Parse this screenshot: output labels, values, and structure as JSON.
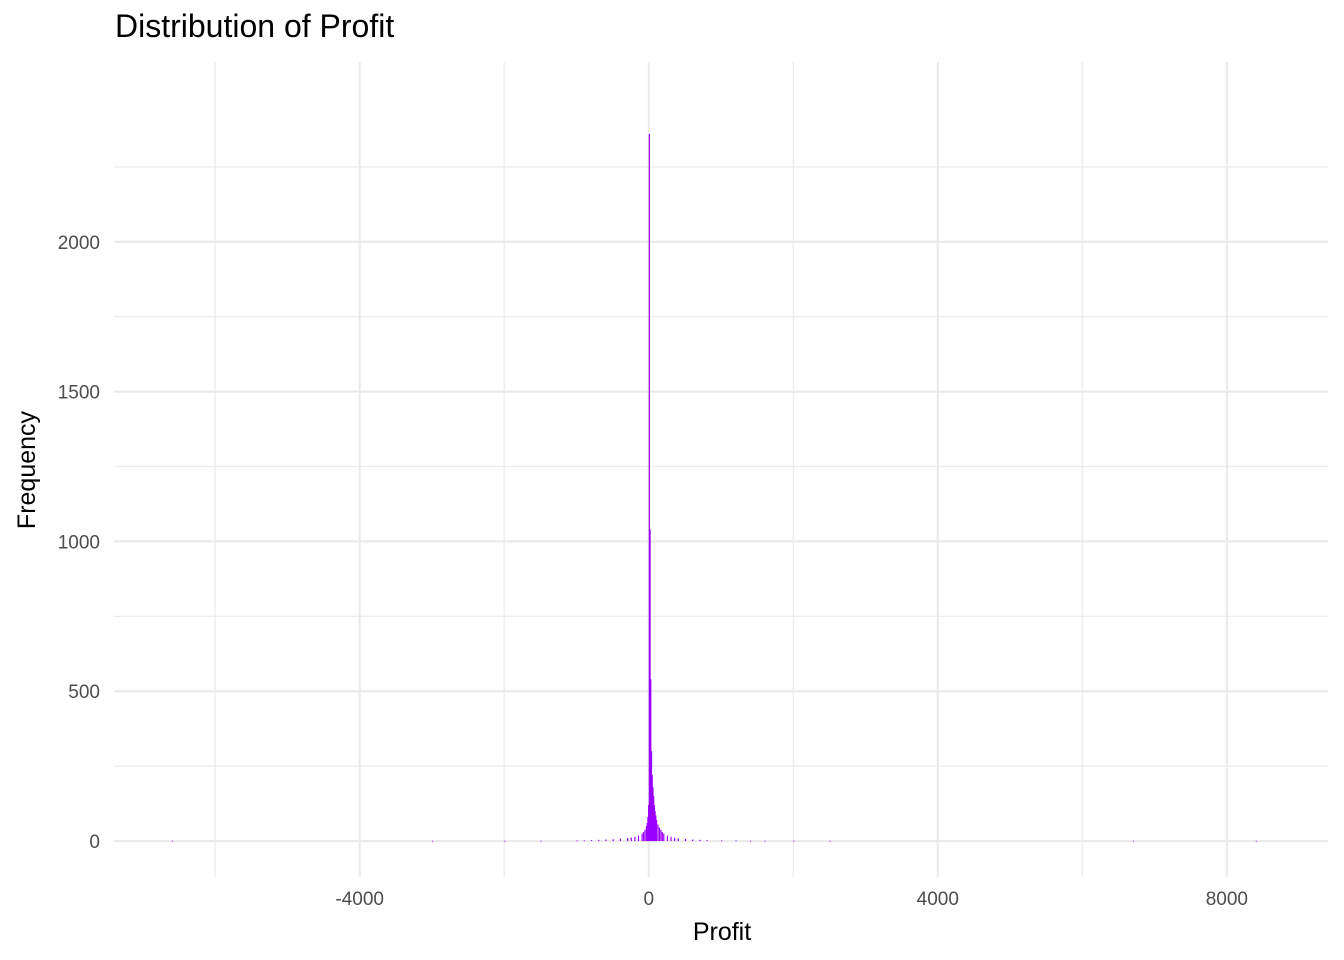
{
  "chart_data": {
    "type": "bar",
    "title": "Distribution of Profit",
    "xlabel": "Profit",
    "ylabel": "Frequency",
    "xlim": [
      -7400,
      9400
    ],
    "ylim": [
      -120,
      2600
    ],
    "x_ticks": [
      -4000,
      0,
      4000,
      8000
    ],
    "x_tick_labels": [
      "-4000",
      "0",
      "4000",
      "8000"
    ],
    "y_ticks": [
      0,
      500,
      1000,
      1500,
      2000
    ],
    "y_tick_labels": [
      "0",
      "500",
      "1000",
      "1500",
      "2000"
    ],
    "grid": true,
    "bar_color": "#9b00ff",
    "bin_width": 10,
    "bins": [
      {
        "x": -1000,
        "count": 2
      },
      {
        "x": -900,
        "count": 2
      },
      {
        "x": -800,
        "count": 3
      },
      {
        "x": -700,
        "count": 4
      },
      {
        "x": -600,
        "count": 5
      },
      {
        "x": -500,
        "count": 6
      },
      {
        "x": -400,
        "count": 8
      },
      {
        "x": -300,
        "count": 10
      },
      {
        "x": -250,
        "count": 12
      },
      {
        "x": -200,
        "count": 14
      },
      {
        "x": -150,
        "count": 18
      },
      {
        "x": -100,
        "count": 25
      },
      {
        "x": -80,
        "count": 30
      },
      {
        "x": -60,
        "count": 38
      },
      {
        "x": -40,
        "count": 50
      },
      {
        "x": -30,
        "count": 60
      },
      {
        "x": -20,
        "count": 80
      },
      {
        "x": -10,
        "count": 120
      },
      {
        "x": 0,
        "count": 2360
      },
      {
        "x": 10,
        "count": 1040
      },
      {
        "x": 20,
        "count": 540
      },
      {
        "x": 30,
        "count": 300
      },
      {
        "x": 40,
        "count": 220
      },
      {
        "x": 50,
        "count": 180
      },
      {
        "x": 60,
        "count": 150
      },
      {
        "x": 70,
        "count": 120
      },
      {
        "x": 80,
        "count": 100
      },
      {
        "x": 90,
        "count": 85
      },
      {
        "x": 100,
        "count": 70
      },
      {
        "x": 120,
        "count": 55
      },
      {
        "x": 140,
        "count": 45
      },
      {
        "x": 160,
        "count": 38
      },
      {
        "x": 180,
        "count": 30
      },
      {
        "x": 200,
        "count": 25
      },
      {
        "x": 250,
        "count": 18
      },
      {
        "x": 300,
        "count": 14
      },
      {
        "x": 350,
        "count": 11
      },
      {
        "x": 400,
        "count": 9
      },
      {
        "x": 500,
        "count": 7
      },
      {
        "x": 600,
        "count": 5
      },
      {
        "x": 700,
        "count": 4
      },
      {
        "x": 800,
        "count": 3
      },
      {
        "x": 1000,
        "count": 2
      },
      {
        "x": 1200,
        "count": 2
      },
      {
        "x": 1400,
        "count": 1
      },
      {
        "x": 1600,
        "count": 1
      },
      {
        "x": 2000,
        "count": 1
      },
      {
        "x": 2500,
        "count": 1
      },
      {
        "x": -1500,
        "count": 1
      },
      {
        "x": -2000,
        "count": 1
      },
      {
        "x": -3000,
        "count": 1
      },
      {
        "x": -6600,
        "count": 1
      },
      {
        "x": 6700,
        "count": 1
      },
      {
        "x": 8400,
        "count": 1
      }
    ]
  }
}
